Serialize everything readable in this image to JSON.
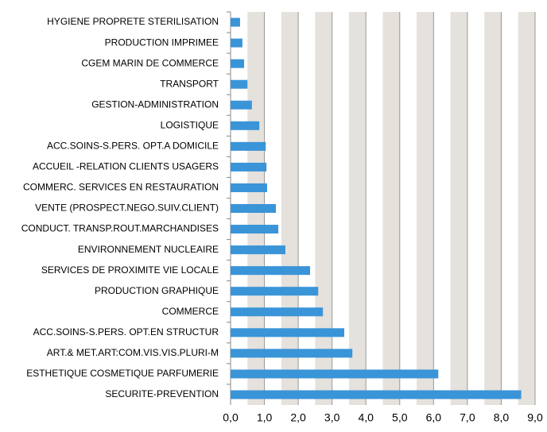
{
  "chart_data": {
    "type": "bar",
    "orientation": "horizontal",
    "categories": [
      "HYGIENE PROPRETE STERILISATION",
      "PRODUCTION IMPRIMEE",
      "CGEM MARIN DE COMMERCE",
      "TRANSPORT",
      "GESTION-ADMINISTRATION",
      "LOGISTIQUE",
      "ACC.SOINS-S.PERS. OPT.A DOMICILE",
      "ACCUEIL -RELATION CLIENTS USAGERS",
      "COMMERC. SERVICES EN RESTAURATION",
      "VENTE (PROSPECT.NEGO.SUIV.CLIENT)",
      "CONDUCT. TRANSP.ROUT.MARCHANDISES",
      "ENVIRONNEMENT NUCLEAIRE",
      "SERVICES DE PROXIMITE VIE LOCALE",
      "PRODUCTION GRAPHIQUE",
      "COMMERCE",
      "ACC.SOINS-S.PERS. OPT.EN STRUCTUR",
      "ART.& MET.ART:COM.VIS.VIS.PLURI-M",
      "ESTHETIQUE COSMETIQUE PARFUMERIE",
      "SECURITE-PREVENTION"
    ],
    "values": [
      0.28,
      0.35,
      0.4,
      0.5,
      0.63,
      0.85,
      1.04,
      1.06,
      1.08,
      1.34,
      1.41,
      1.62,
      2.35,
      2.59,
      2.73,
      3.36,
      3.6,
      6.14,
      8.59
    ],
    "color": "#3a94d8",
    "xlim": [
      0,
      9
    ],
    "xticks": [
      {
        "value": 0,
        "label": "0,0"
      },
      {
        "value": 1,
        "label": "1,0"
      },
      {
        "value": 2,
        "label": "2,0"
      },
      {
        "value": 3,
        "label": "3,0"
      },
      {
        "value": 4,
        "label": "4,0"
      },
      {
        "value": 5,
        "label": "5,0"
      },
      {
        "value": 6,
        "label": "6,0"
      },
      {
        "value": 7,
        "label": "7,0"
      },
      {
        "value": 8,
        "label": "8,0"
      },
      {
        "value": 9,
        "label": "9,0"
      }
    ],
    "grid": true
  }
}
